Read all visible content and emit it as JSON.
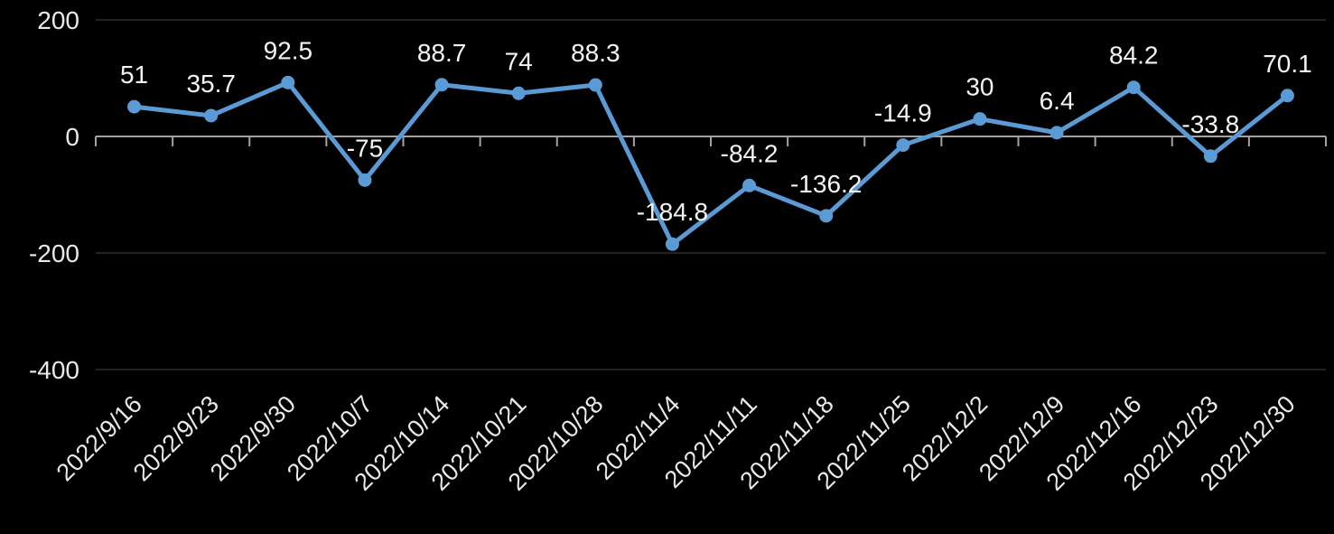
{
  "chart": {
    "background_color": "#000000",
    "line_color": "#5b9bd5",
    "marker_color": "#5b9bd5",
    "gridline_color": "#2e2e2e",
    "axis_line_color": "#a3a3a3",
    "data_label_color": "#f5f5f5",
    "axis_label_color": "#e9e9e9"
  },
  "chart_data": {
    "type": "line",
    "title": "",
    "xlabel": "",
    "ylabel": "",
    "legend": "none",
    "grid": true,
    "marker": "circle",
    "x_label_rotation_deg": 45,
    "categories": [
      "2022/9/16",
      "2022/9/23",
      "2022/9/30",
      "2022/10/7",
      "2022/10/14",
      "2022/10/21",
      "2022/10/28",
      "2022/11/4",
      "2022/11/11",
      "2022/11/18",
      "2022/11/25",
      "2022/12/2",
      "2022/12/9",
      "2022/12/16",
      "2022/12/23",
      "2022/12/30"
    ],
    "values": [
      51,
      35.7,
      92.5,
      -75,
      88.7,
      74,
      88.3,
      -184.8,
      -84.2,
      -136.2,
      -14.9,
      30,
      6.4,
      84.2,
      -33.8,
      70.1
    ],
    "data_labels": [
      "51",
      "35.7",
      "92.5",
      "-75",
      "88.7",
      "74",
      "88.3",
      "-184.8",
      "-84.2",
      "-136.2",
      "-14.9",
      "30",
      "6.4",
      "84.2",
      "-33.8",
      "70.1"
    ],
    "yticks": [
      200,
      0,
      -200,
      -400
    ],
    "ytick_labels": [
      "200",
      "0",
      "-200",
      "-400"
    ],
    "ylim": [
      -400,
      200
    ]
  }
}
